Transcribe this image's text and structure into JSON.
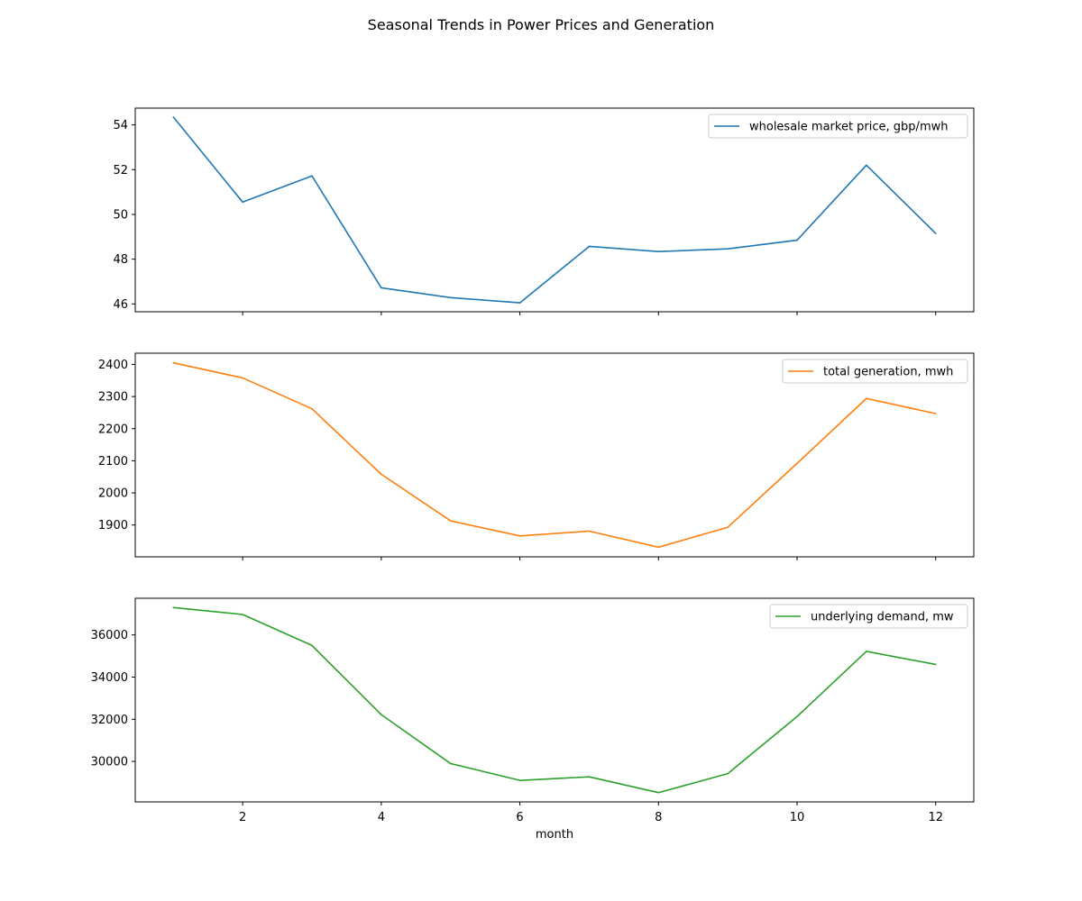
{
  "chart_data": {
    "type": "line",
    "title": "Seasonal Trends in Power Prices and Generation",
    "xlabel": "month",
    "x": [
      1,
      2,
      3,
      4,
      5,
      6,
      7,
      8,
      9,
      10,
      11,
      12
    ],
    "xlim": [
      0.45,
      12.55
    ],
    "xticks": [
      2,
      4,
      6,
      8,
      10,
      12
    ],
    "sharex": true,
    "grid": false,
    "panels": [
      {
        "series": [
          {
            "name": "wholesale market price, gbp/mwh",
            "color": "#1f77b4",
            "values": [
              54.35,
              50.55,
              51.72,
              46.72,
              46.28,
              46.05,
              48.57,
              48.34,
              48.46,
              48.85,
              52.2,
              49.15
            ]
          }
        ],
        "ylim": [
          45.65,
          54.75
        ],
        "yticks": [
          46,
          48,
          50,
          52,
          54
        ],
        "legend": "upper-right"
      },
      {
        "series": [
          {
            "name": "total generation, mwh",
            "color": "#ff7f0e",
            "values": [
              2405,
              2358,
              2262,
              2058,
              1913,
              1866,
              1881,
              1831,
              1893,
              2092,
              2294,
              2247
            ]
          }
        ],
        "ylim": [
          1801,
          2435
        ],
        "yticks": [
          1900,
          2000,
          2100,
          2200,
          2300,
          2400
        ],
        "legend": "upper-right"
      },
      {
        "series": [
          {
            "name": "underlying demand, mw",
            "color": "#2ca02c",
            "values": [
              37300,
              36970,
              35500,
              32220,
              29900,
              29100,
              29270,
              28520,
              29420,
              32130,
              35220,
              34600
            ]
          }
        ],
        "ylim": [
          28080,
          37740
        ],
        "yticks": [
          30000,
          32000,
          34000,
          36000
        ],
        "legend": "upper-right"
      }
    ]
  }
}
